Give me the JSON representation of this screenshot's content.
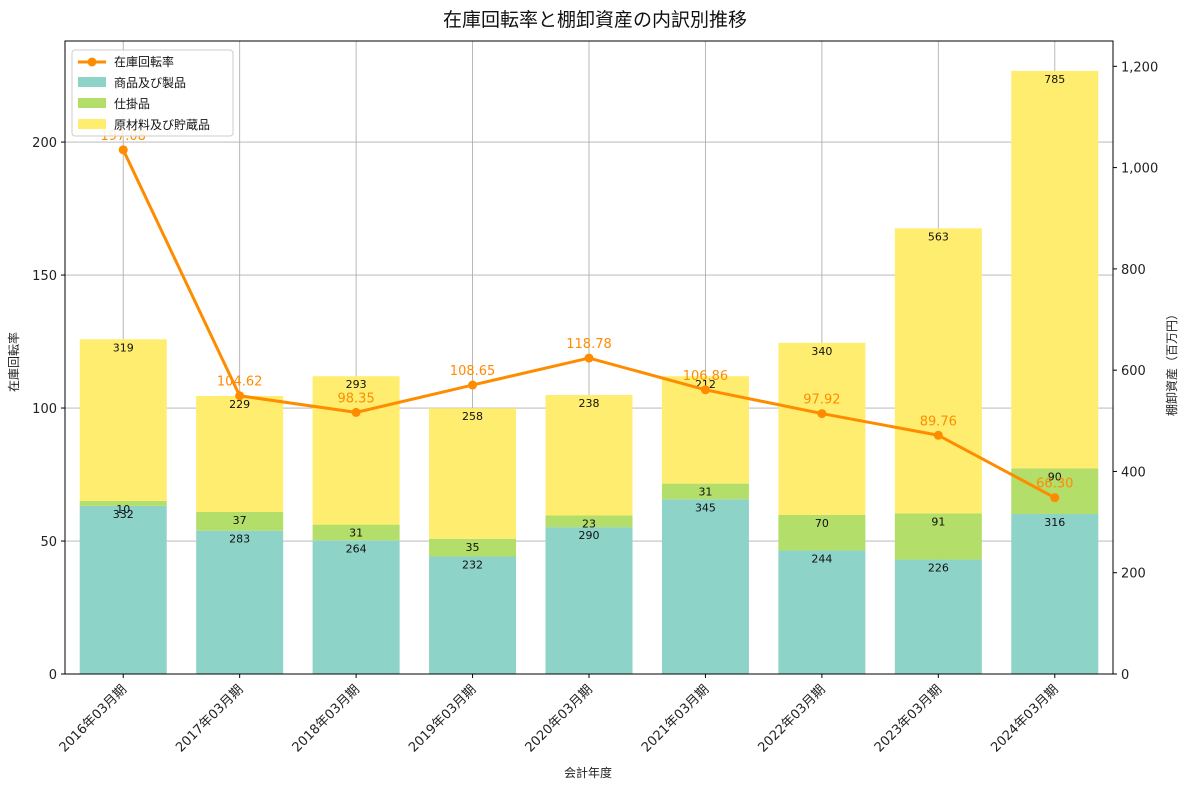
{
  "chart_data": {
    "type": "bar",
    "title": "在庫回転率と棚卸資産の内訳別推移",
    "xlabel": "会計年度",
    "ylabel_left": "在庫回転率",
    "ylabel_right": "棚卸資産（百万円）",
    "categories": [
      "2016年03月期",
      "2017年03月期",
      "2018年03月期",
      "2019年03月期",
      "2020年03月期",
      "2021年03月期",
      "2022年03月期",
      "2023年03月期",
      "2024年03月期"
    ],
    "stacked_series": [
      {
        "name": "商品及び製品",
        "color": "#8dd3c7",
        "values": [
          332,
          283,
          264,
          232,
          290,
          345,
          244,
          226,
          316
        ]
      },
      {
        "name": "仕掛品",
        "color": "#b3de69",
        "values": [
          10,
          37,
          31,
          35,
          23,
          31,
          70,
          91,
          90
        ]
      },
      {
        "name": "原材料及び貯蔵品",
        "color": "#ffed6f",
        "values": [
          319,
          229,
          293,
          258,
          238,
          212,
          340,
          563,
          785
        ]
      }
    ],
    "line_series": {
      "name": "在庫回転率",
      "color": "#ff8c00",
      "values": [
        197.08,
        104.62,
        98.35,
        108.65,
        118.78,
        106.86,
        97.92,
        89.76,
        66.3
      ],
      "labels": [
        "197.08",
        "104.62",
        "98.35",
        "108.65",
        "118.78",
        "106.86",
        "97.92",
        "89.76",
        "66.30"
      ]
    },
    "ylim_left": [
      0,
      238
    ],
    "ylim_right": [
      0,
      1250
    ],
    "yticks_left": [
      0,
      50,
      100,
      150,
      200
    ],
    "yticks_left_labels": [
      "0",
      "50",
      "100",
      "150",
      "200"
    ],
    "yticks_right": [
      0,
      200,
      400,
      600,
      800,
      1000,
      1200
    ],
    "yticks_right_labels": [
      "0",
      "200",
      "400",
      "600",
      "800",
      "1,000",
      "1,200"
    ],
    "legend_position": "top-left",
    "grid": true
  }
}
